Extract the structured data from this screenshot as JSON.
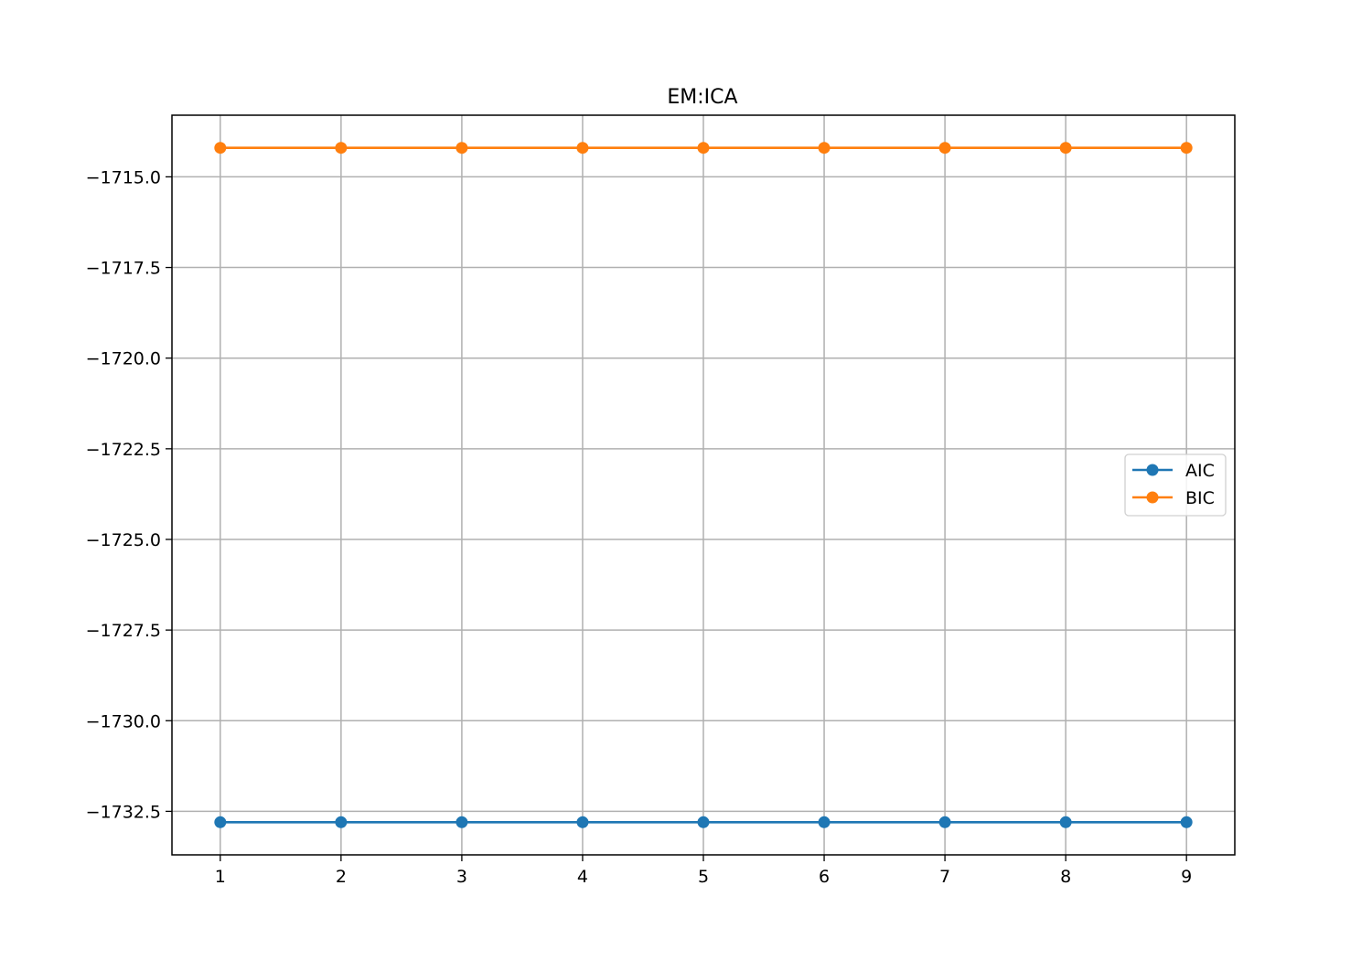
{
  "chart_data": {
    "type": "line",
    "title": "EM:ICA",
    "xlabel": "",
    "ylabel": "",
    "x": [
      1,
      2,
      3,
      4,
      5,
      6,
      7,
      8,
      9
    ],
    "xticks": [
      1,
      2,
      3,
      4,
      5,
      6,
      7,
      8,
      9
    ],
    "xlim": [
      0.6,
      9.4
    ],
    "yticks": [
      -1732.5,
      -1730.0,
      -1727.5,
      -1725.0,
      -1722.5,
      -1720.0,
      -1717.5,
      -1715.0
    ],
    "ylim": [
      -1733.7,
      -1713.3
    ],
    "grid": true,
    "legend_position": "center-right",
    "series": [
      {
        "name": "AIC",
        "color": "#1f77b4",
        "marker": "circle",
        "values": [
          -1732.8,
          -1732.8,
          -1732.8,
          -1732.8,
          -1732.8,
          -1732.8,
          -1732.8,
          -1732.8,
          -1732.8
        ]
      },
      {
        "name": "BIC",
        "color": "#ff7f0e",
        "marker": "circle",
        "values": [
          -1714.2,
          -1714.2,
          -1714.2,
          -1714.2,
          -1714.2,
          -1714.2,
          -1714.2,
          -1714.2,
          -1714.2
        ]
      }
    ]
  }
}
